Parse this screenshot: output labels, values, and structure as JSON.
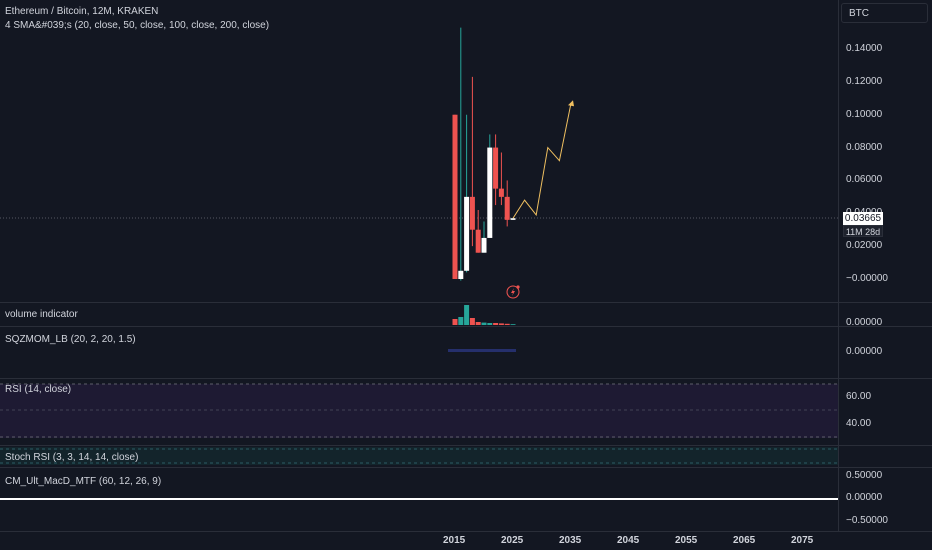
{
  "main": {
    "title": "Ethereum / Bitcoin, 12M, KRAKEN",
    "indicator": "4 SMA&#039;s (20, close, 50, close, 100, close, 200, close)",
    "currency": "BTC",
    "price_label": "0.03665",
    "countdown": "11M 28d",
    "y_ticks": [
      "0.14000",
      "0.12000",
      "0.10000",
      "0.08000",
      "0.06000",
      "0.04000",
      "0.02000",
      "−0.00000"
    ]
  },
  "panes": {
    "volume": {
      "label": "volume indicator",
      "tick": "0.00000"
    },
    "sqzmom": {
      "label": "SQZMOM_LB (20, 2, 20, 1.5)",
      "tick": "0.00000"
    },
    "rsi": {
      "label": "RSI (14, close)",
      "ticks": [
        "60.00",
        "40.00"
      ]
    },
    "stoch": {
      "label": "Stoch RSI (3, 3, 14, 14, close)"
    },
    "macd": {
      "label": "CM_Ult_MacD_MTF (60, 12, 26, 9)",
      "ticks": [
        "0.50000",
        "0.00000",
        "−0.50000"
      ]
    }
  },
  "x_axis": {
    "ticks": [
      "2015",
      "2025",
      "2035",
      "2045",
      "2055",
      "2065",
      "2075"
    ]
  },
  "colors": {
    "background": "#131722",
    "up": "#ffffff",
    "down": "#ef5350",
    "wick_up": "#26a69a",
    "projection": "#f0c060",
    "rsi_band": "#1e1a33"
  },
  "chart_data": {
    "type": "candlestick",
    "title": "Ethereum / Bitcoin, 12M, KRAKEN",
    "ylim": [
      -0.012,
      0.155
    ],
    "candles": [
      {
        "x": 2015,
        "open": 0.1,
        "high": 0.1,
        "low": 0.0,
        "close": 0.0
      },
      {
        "x": 2016,
        "open": 0.0,
        "high": 0.153,
        "low": -0.001,
        "close": 0.005
      },
      {
        "x": 2017,
        "open": 0.005,
        "high": 0.1,
        "low": 0.004,
        "close": 0.05
      },
      {
        "x": 2018,
        "open": 0.05,
        "high": 0.123,
        "low": 0.02,
        "close": 0.03
      },
      {
        "x": 2019,
        "open": 0.03,
        "high": 0.042,
        "low": 0.016,
        "close": 0.016
      },
      {
        "x": 2020,
        "open": 0.016,
        "high": 0.035,
        "low": 0.016,
        "close": 0.025
      },
      {
        "x": 2021,
        "open": 0.025,
        "high": 0.088,
        "low": 0.025,
        "close": 0.08
      },
      {
        "x": 2022,
        "open": 0.08,
        "high": 0.088,
        "low": 0.045,
        "close": 0.055
      },
      {
        "x": 2023,
        "open": 0.055,
        "high": 0.077,
        "low": 0.045,
        "close": 0.05
      },
      {
        "x": 2024,
        "open": 0.05,
        "high": 0.06,
        "low": 0.032,
        "close": 0.036
      },
      {
        "x": 2025,
        "open": 0.036,
        "high": 0.037,
        "low": 0.036,
        "close": 0.037
      }
    ],
    "projection": [
      [
        2025,
        0.037
      ],
      [
        2027,
        0.048
      ],
      [
        2029,
        0.039
      ],
      [
        2031,
        0.08
      ],
      [
        2033,
        0.072
      ],
      [
        2035,
        0.107
      ]
    ],
    "volume": [
      {
        "x": 2015,
        "v": 0.3,
        "up": false
      },
      {
        "x": 2016,
        "v": 0.4,
        "up": true
      },
      {
        "x": 2017,
        "v": 1.0,
        "up": true
      },
      {
        "x": 2018,
        "v": 0.35,
        "up": false
      },
      {
        "x": 2019,
        "v": 0.15,
        "up": false
      },
      {
        "x": 2020,
        "v": 0.12,
        "up": true
      },
      {
        "x": 2021,
        "v": 0.1,
        "up": true
      },
      {
        "x": 2022,
        "v": 0.1,
        "up": false
      },
      {
        "x": 2023,
        "v": 0.08,
        "up": false
      },
      {
        "x": 2024,
        "v": 0.06,
        "up": false
      },
      {
        "x": 2025,
        "v": 0.04,
        "up": true
      }
    ]
  }
}
